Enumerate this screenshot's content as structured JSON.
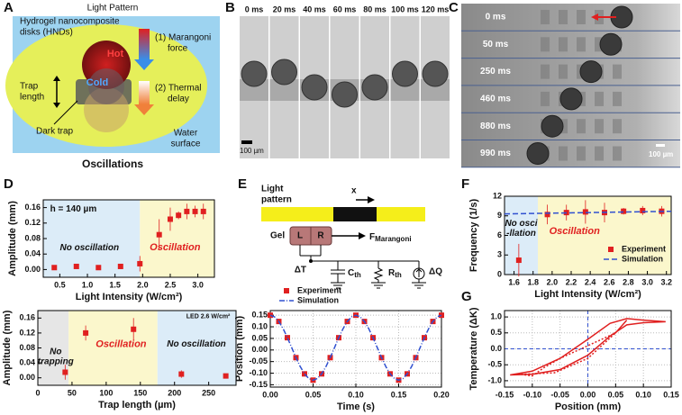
{
  "panels": {
    "A": {
      "letter": "A",
      "light_pattern": "Light Pattern",
      "hnd": [
        "Hydrogel nanocomposite",
        "disks (HNDs)"
      ],
      "hot": "Hot",
      "cold": "Cold",
      "marangoni": [
        "(1) Marangoni",
        "force"
      ],
      "trap_length": [
        "Trap",
        "length"
      ],
      "thermal_delay": [
        "(2) Thermal",
        "delay"
      ],
      "dark_trap": "Dark trap",
      "water_surface": [
        "Water",
        "surface"
      ],
      "caption": "Oscillations"
    },
    "B": {
      "letter": "B",
      "times": [
        "0 ms",
        "20 ms",
        "40 ms",
        "60 ms",
        "80 ms",
        "100 ms",
        "120 ms"
      ],
      "scale": "100 µm"
    },
    "C": {
      "letter": "C",
      "times": [
        "0 ms",
        "50 ms",
        "250 ms",
        "460 ms",
        "880 ms",
        "990 ms"
      ],
      "scale": "100 µm"
    },
    "D": {
      "letter": "D"
    },
    "E": {
      "letter": "E",
      "light_pattern": [
        "Light",
        "pattern"
      ],
      "x": "x",
      "gel": "Gel",
      "l": "L",
      "r": "R",
      "force": "F",
      "force_sub": "Marangoni",
      "dt": "ΔT",
      "c": "C",
      "c_sub": "th",
      "rth": "R",
      "rth_sub": "th",
      "dq": "ΔQ"
    },
    "F": {
      "letter": "F"
    },
    "G": {
      "letter": "G"
    }
  },
  "chart_data": [
    {
      "type": "scatter",
      "x_label": "Light Intensity (W/cm²)",
      "y_label": "Amplitude (mm)",
      "xlim": [
        0.2,
        3.3
      ],
      "ylim": [
        -0.02,
        0.18
      ],
      "xticks": [
        0.5,
        {
          "value": 1,
          "label": "1.0"
        },
        1.5,
        {
          "value": 2,
          "label": "2.0"
        },
        2.5,
        {
          "value": 3,
          "label": "3.0"
        }
      ],
      "yticks": [
        {
          "value": 0,
          "label": "0.00"
        },
        0.04,
        0.08,
        0.12,
        0.16
      ],
      "regions": [
        {
          "from": 0.2,
          "to": 1.95,
          "color": "#dcecf8"
        },
        {
          "from": 1.95,
          "to": 3.3,
          "color": "#fbf7cc"
        }
      ],
      "annotations": [
        "h = 140 µm",
        "No oscillation",
        "Oscillation"
      ],
      "series": [
        {
          "color": "#e02020",
          "mode": "markers",
          "x": [
            0.4,
            0.8,
            1.2,
            1.6,
            1.95,
            2.3,
            2.5,
            2.65,
            2.8,
            2.95,
            3.1
          ],
          "values": [
            0.005,
            0.008,
            0.005,
            0.008,
            0.015,
            0.09,
            0.13,
            0.14,
            0.15,
            0.15,
            0.15
          ],
          "errors": [
            0.006,
            0.006,
            0.006,
            0.006,
            0.02,
            0.04,
            0.03,
            0.01,
            0.02,
            0.015,
            0.02
          ]
        }
      ]
    },
    {
      "type": "scatter",
      "x_label": "Trap length (µm)",
      "y_label": "Amplitude (mm)",
      "xlim": [
        0,
        290
      ],
      "ylim": [
        -0.02,
        0.18
      ],
      "xticks": [
        0,
        50,
        100,
        150,
        200,
        250
      ],
      "yticks": [
        {
          "value": 0,
          "label": "0.00"
        },
        0.04,
        0.08,
        0.12,
        0.16
      ],
      "regions": [
        {
          "from": 0,
          "to": 45,
          "color": "#e6e6e6"
        },
        {
          "from": 45,
          "to": 175,
          "color": "#fbf7cc"
        },
        {
          "from": 175,
          "to": 290,
          "color": "#dcecf8"
        }
      ],
      "annotations": [
        [
          "No",
          "trapping"
        ],
        "Oscillation",
        "No oscillation",
        "LED 2.6 W/cm²"
      ],
      "series": [
        {
          "color": "#e02020",
          "mode": "markers",
          "x": [
            40,
            70,
            140,
            210,
            275
          ],
          "values": [
            0.015,
            0.12,
            0.13,
            0.01,
            0.005
          ],
          "errors": [
            0.02,
            0.02,
            0.03,
            0.01,
            0.005
          ]
        }
      ]
    },
    {
      "type": "line",
      "x_label": "Time (s)",
      "y_label": "Position (mm)",
      "xlim": [
        0,
        0.2
      ],
      "ylim": [
        -0.16,
        0.17
      ],
      "grid": true,
      "legend": "upper left",
      "xticks": [
        {
          "value": 0,
          "label": "0.00"
        },
        0.05,
        {
          "value": 0.1,
          "label": "0.10"
        },
        0.15,
        {
          "value": 0.2,
          "label": "0.20"
        }
      ],
      "yticks": [
        -0.15,
        {
          "value": -0.1,
          "label": "-0.10"
        },
        -0.05,
        {
          "value": 0,
          "label": "0.00"
        },
        0.05,
        {
          "value": 0.1,
          "label": "0.10"
        },
        0.15
      ],
      "series": [
        {
          "name": "Experiment",
          "color": "#e02020",
          "mode": "markers",
          "x": [
            0,
            0.01,
            0.02,
            0.03,
            0.04,
            0.05,
            0.06,
            0.07,
            0.08,
            0.09,
            0.1,
            0.11,
            0.12,
            0.13,
            0.14,
            0.15,
            0.16,
            0.17,
            0.18,
            0.19,
            0.2
          ],
          "values": [
            0.15,
            0.123,
            0.053,
            -0.033,
            -0.103,
            -0.13,
            -0.103,
            -0.033,
            0.053,
            0.123,
            0.15,
            0.123,
            0.053,
            -0.033,
            -0.103,
            -0.13,
            -0.103,
            -0.033,
            0.053,
            0.123,
            0.15
          ]
        },
        {
          "name": "Simulation",
          "color": "#3050d0",
          "mode": "dashdot",
          "x": [
            0,
            0.005,
            0.01,
            0.015,
            0.02,
            0.025,
            0.03,
            0.035,
            0.04,
            0.045,
            0.05,
            0.055,
            0.06,
            0.065,
            0.07,
            0.075,
            0.08,
            0.085,
            0.09,
            0.095,
            0.1,
            0.105,
            0.11,
            0.115,
            0.12,
            0.125,
            0.13,
            0.135,
            0.14,
            0.145,
            0.15,
            0.155,
            0.16,
            0.165,
            0.17,
            0.175,
            0.18,
            0.185,
            0.19,
            0.195,
            0.2
          ],
          "values": [
            0.15,
            0.143,
            0.123,
            0.092,
            0.053,
            0.01,
            -0.033,
            -0.072,
            -0.103,
            -0.123,
            -0.13,
            -0.123,
            -0.103,
            -0.072,
            -0.033,
            0.01,
            0.053,
            0.092,
            0.123,
            0.143,
            0.15,
            0.143,
            0.123,
            0.092,
            0.053,
            0.01,
            -0.033,
            -0.072,
            -0.103,
            -0.123,
            -0.13,
            -0.123,
            -0.103,
            -0.072,
            -0.033,
            0.01,
            0.053,
            0.092,
            0.123,
            0.143,
            0.15
          ]
        }
      ]
    },
    {
      "type": "scatter",
      "x_label": "Light Intensity (W/cm²)",
      "y_label": "Frequency (1/s)",
      "xlim": [
        1.5,
        3.25
      ],
      "ylim": [
        0,
        12
      ],
      "legend": "lower right",
      "xticks": [
        1.6,
        1.8,
        {
          "value": 2,
          "label": "2.0"
        },
        2.2,
        2.4,
        2.6,
        2.8,
        {
          "value": 3,
          "label": "3.0"
        },
        3.2
      ],
      "yticks": [
        0,
        3,
        6,
        9,
        12
      ],
      "regions": [
        {
          "from": 1.5,
          "to": 1.85,
          "color": "#dcecf8"
        },
        {
          "from": 1.85,
          "to": 3.25,
          "color": "#fbf7cc"
        }
      ],
      "annotations": [
        [
          "No osci",
          "-llation"
        ],
        "Oscillation"
      ],
      "series": [
        {
          "name": "Experiment",
          "color": "#e02020",
          "mode": "markers",
          "x": [
            1.65,
            1.95,
            2.15,
            2.35,
            2.55,
            2.75,
            2.95,
            3.15
          ],
          "values": [
            2.2,
            9.2,
            9.5,
            9.6,
            9.5,
            9.7,
            9.8,
            9.7
          ],
          "errors": [
            2.5,
            1.5,
            1.2,
            1.8,
            1.5,
            0.5,
            0.7,
            0.8
          ]
        },
        {
          "name": "Simulation",
          "color": "#3050d0",
          "mode": "dashed",
          "x": [
            1.5,
            3.25
          ],
          "values": [
            9.3,
            9.7
          ]
        }
      ]
    },
    {
      "type": "line",
      "x_label": "Position (mm)",
      "y_label": "Temperature (ΔK)",
      "xlim": [
        -0.15,
        0.15
      ],
      "ylim": [
        -1.2,
        1.2
      ],
      "grid": true,
      "zero_lines": true,
      "xticks": [
        -0.15,
        {
          "value": -0.1,
          "label": "-0.10"
        },
        -0.05,
        {
          "value": 0,
          "label": "0.00"
        },
        0.05,
        {
          "value": 0.1,
          "label": "0.10"
        },
        0.15
      ],
      "yticks": [
        {
          "value": -1,
          "label": "-1.0"
        },
        -0.5,
        {
          "value": 0,
          "label": "0.0"
        },
        0.5,
        {
          "value": 1,
          "label": "1.0"
        }
      ],
      "series": [
        {
          "color": "#e02020",
          "mode": "solid",
          "x": [
            -0.14,
            -0.1,
            -0.05,
            0,
            0.04,
            0.07,
            0.1,
            0.14,
            0.1,
            0.07,
            0.04,
            0,
            -0.05,
            -0.1,
            -0.14
          ],
          "values": [
            -0.82,
            -0.8,
            -0.65,
            -0.2,
            0.4,
            0.75,
            0.82,
            0.85,
            0.9,
            0.95,
            0.8,
            0.3,
            -0.3,
            -0.7,
            -0.82
          ]
        },
        {
          "color": "#e02020",
          "mode": "dotted",
          "x": [
            -0.12,
            -0.06,
            0,
            0.05,
            0.07,
            0.05,
            0,
            -0.05,
            -0.08,
            -0.1,
            -0.12
          ],
          "values": [
            -0.8,
            -0.75,
            -0.3,
            0.5,
            0.9,
            0.5,
            0.1,
            -0.3,
            -0.6,
            -0.85,
            -0.8
          ]
        }
      ]
    }
  ]
}
